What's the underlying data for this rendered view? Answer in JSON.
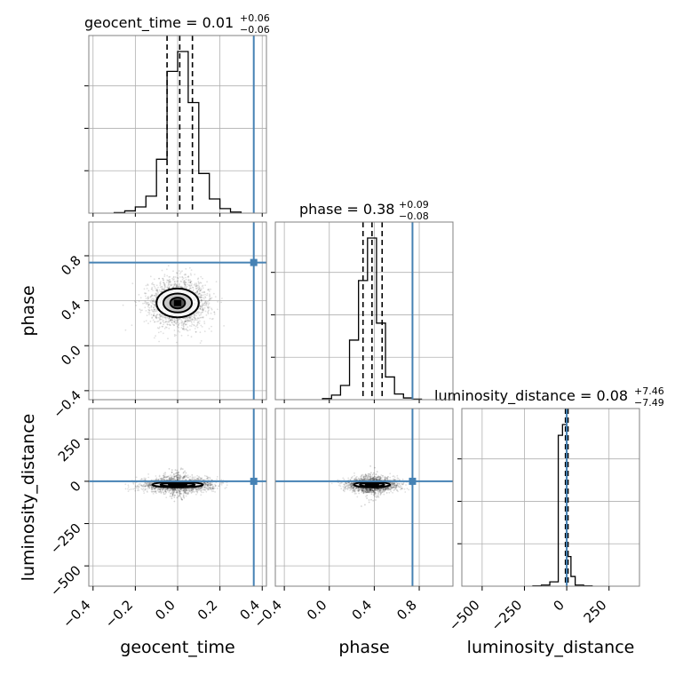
{
  "chart_data": {
    "type": "corner",
    "parameters": [
      "geocent_time",
      "phase",
      "luminosity_distance"
    ],
    "truth_color": "#4682b4",
    "titles": [
      {
        "param": "geocent_time",
        "label": "geocent_time = 0.01",
        "sup": "+0.06",
        "sub": "−0.06"
      },
      {
        "param": "phase",
        "label": "phase = 0.38",
        "sup": "+0.09",
        "sub": "−0.08"
      },
      {
        "param": "luminosity_distance",
        "label": "luminosity_distance = 0.08",
        "sup": "+7.46",
        "sub": "−7.49"
      }
    ],
    "axes": {
      "geocent_time": {
        "range": [
          -0.42,
          0.42
        ],
        "ticks": [
          -0.4,
          -0.2,
          0.0,
          0.2,
          0.4
        ],
        "tick_labels": [
          "−0.4",
          "−0.2",
          "0.0",
          "0.2",
          "0.4"
        ],
        "truth": 0.36,
        "median": 0.01,
        "lower": -0.05,
        "upper": 0.07
      },
      "phase": {
        "range": [
          -0.48,
          1.1
        ],
        "ticks": [
          -0.4,
          0.0,
          0.4,
          0.8
        ],
        "tick_labels": [
          "−0.4",
          "0.0",
          "0.4",
          "0.8"
        ],
        "truth": 0.74,
        "median": 0.38,
        "lower": 0.3,
        "upper": 0.47
      },
      "luminosity_distance": {
        "range": [
          -620,
          430
        ],
        "ticks": [
          -500,
          -250,
          0,
          250
        ],
        "tick_labels": [
          "−500",
          "−250",
          "0",
          "250"
        ],
        "y_tick_labels": [
          "−500",
          "−250",
          "0",
          "250"
        ],
        "truth": 0.0,
        "median": 0.08,
        "lower": -7.41,
        "upper": 7.54
      }
    },
    "histograms": {
      "geocent_time": {
        "edges": [
          -0.3,
          -0.25,
          -0.2,
          -0.15,
          -0.1,
          -0.05,
          0.0,
          0.05,
          0.1,
          0.15,
          0.2,
          0.25,
          0.3
        ],
        "counts": [
          1,
          4,
          11,
          30,
          95,
          250,
          285,
          195,
          70,
          25,
          8,
          2
        ]
      },
      "phase": {
        "edges": [
          -0.06,
          0.02,
          0.1,
          0.18,
          0.26,
          0.34,
          0.42,
          0.5,
          0.58,
          0.66,
          0.74,
          0.82
        ],
        "counts": [
          2,
          8,
          25,
          105,
          210,
          285,
          135,
          40,
          10,
          3,
          1
        ]
      },
      "luminosity_distance": {
        "edges": [
          -200,
          -150,
          -100,
          -50,
          -25,
          0,
          25,
          50,
          100,
          150
        ],
        "counts": [
          0.5,
          2,
          8,
          280,
          300,
          55,
          18,
          2,
          0.5
        ]
      }
    },
    "contours_2d": {
      "phase_vs_geocent_time": {
        "center": [
          0.0,
          0.38
        ],
        "levels_sigma": [
          1,
          2,
          3
        ],
        "sigma": [
          0.05,
          0.08
        ]
      },
      "luminosity_distance_vs_geocent_time": {
        "center": [
          0.0,
          -20
        ],
        "levels_sigma": [
          1,
          2,
          3
        ],
        "sigma": [
          0.06,
          10
        ]
      },
      "luminosity_distance_vs_phase": {
        "center": [
          0.38,
          -20
        ],
        "levels_sigma": [
          1,
          2,
          3
        ],
        "sigma": [
          0.08,
          10
        ]
      }
    }
  }
}
